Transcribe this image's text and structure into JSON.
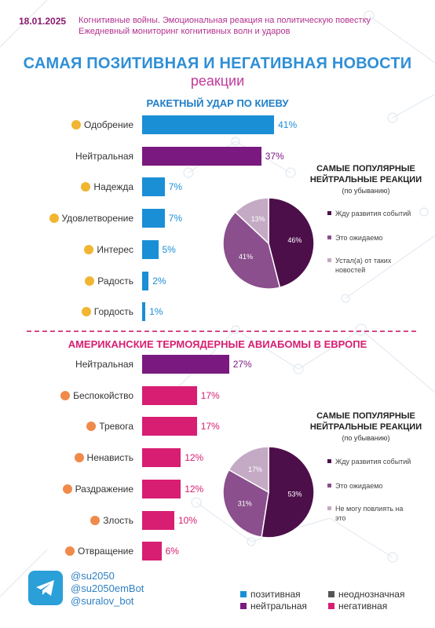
{
  "header": {
    "date": "18.01.2025",
    "line1": "Когнитивные войны. Эмоциональная реакция на политическую повестку",
    "line2": "Ежедневный мониторинг когнитивных волн и ударов"
  },
  "title": {
    "main": "САМАЯ ПОЗИТИВНАЯ И НЕГАТИВНАЯ НОВОСТИ",
    "sub": "реакции"
  },
  "colors": {
    "positive": "#1a8fd6",
    "neutral": "#7a1a80",
    "ambiguous": "#555555",
    "negative": "#d81e72"
  },
  "chart_data": [
    {
      "type": "bar",
      "title": "РАКЕТНЫЙ УДАР ПО КИЕВУ",
      "unit": "%",
      "bars": [
        {
          "label": "Одобрение",
          "value": 41,
          "sentiment": "positive",
          "icon": "clapping-hands-emoji"
        },
        {
          "label": "Нейтральная",
          "value": 37,
          "sentiment": "neutral",
          "icon": ""
        },
        {
          "label": "Надежда",
          "value": 7,
          "sentiment": "positive",
          "icon": "praying-hands-emoji"
        },
        {
          "label": "Удовлетворение",
          "value": 7,
          "sentiment": "positive",
          "icon": "relieved-face-emoji"
        },
        {
          "label": "Интерес",
          "value": 5,
          "sentiment": "positive",
          "icon": "exclamation-question-emoji"
        },
        {
          "label": "Радость",
          "value": 2,
          "sentiment": "positive",
          "icon": "party-face-emoji"
        },
        {
          "label": "Гордость",
          "value": 1,
          "sentiment": "positive",
          "icon": "medal-emoji"
        }
      ]
    },
    {
      "type": "pie",
      "title": "САМЫЕ ПОПУЛЯРНЫЕ НЕЙТРАЛЬНЫЕ РЕАКЦИИ",
      "subtitle": "(по убыванию)",
      "slices": [
        {
          "label": "Жду развития событий",
          "value": 46,
          "color": "#4d0f4a"
        },
        {
          "label": "Это ожидаемо",
          "value": 41,
          "color": "#8a4f8c"
        },
        {
          "label": "Устал(а) от таких новостей",
          "value": 13,
          "color": "#c4aac4"
        }
      ]
    },
    {
      "type": "bar",
      "title": "АМЕРИКАНСКИЕ ТЕРМОЯДЕРНЫЕ АВИАБОМЫ В ЕВРОПЕ",
      "unit": "%",
      "bars": [
        {
          "label": "Нейтральная",
          "value": 27,
          "sentiment": "neutral",
          "icon": ""
        },
        {
          "label": "Беспокойство",
          "value": 17,
          "sentiment": "negative",
          "icon": "grimacing-face-emoji"
        },
        {
          "label": "Тревога",
          "value": 17,
          "sentiment": "negative",
          "icon": "anxious-face-emoji"
        },
        {
          "label": "Ненависть",
          "value": 12,
          "sentiment": "negative",
          "icon": "angry-face-emoji"
        },
        {
          "label": "Раздражение",
          "value": 12,
          "sentiment": "negative",
          "icon": "annoyed-face-emoji"
        },
        {
          "label": "Злость",
          "value": 10,
          "sentiment": "negative",
          "icon": "rage-face-emoji"
        },
        {
          "label": "Отвращение",
          "value": 6,
          "sentiment": "negative",
          "icon": "nauseated-face-emoji"
        }
      ]
    },
    {
      "type": "pie",
      "title": "САМЫЕ ПОПУЛЯРНЫЕ НЕЙТРАЛЬНЫЕ РЕАКЦИИ",
      "subtitle": "(по убыванию)",
      "slices": [
        {
          "label": "Жду развития событий",
          "value": 53,
          "color": "#4d0f4a"
        },
        {
          "label": "Это ожидаемо",
          "value": 31,
          "color": "#8a4f8c"
        },
        {
          "label": "Не могу повлиять на это",
          "value": 17,
          "color": "#c4aac4"
        }
      ]
    }
  ],
  "footer": {
    "handles": [
      "@su2050",
      "@su2050emBot",
      "@suralov_bot"
    ],
    "legend": [
      {
        "label": "позитивная",
        "color": "#1a8fd6"
      },
      {
        "label": "неоднозначная",
        "color": "#555555"
      },
      {
        "label": "нейтральная",
        "color": "#7a1a80"
      },
      {
        "label": "негативная",
        "color": "#d81e72"
      }
    ]
  }
}
